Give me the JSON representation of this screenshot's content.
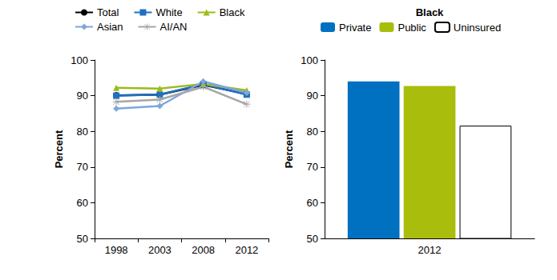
{
  "chart_data": [
    {
      "type": "line",
      "categories": [
        "1998",
        "2003",
        "2008",
        "2012"
      ],
      "y_label": "Percent",
      "ylim": [
        50,
        100
      ],
      "yticks": [
        50,
        60,
        70,
        80,
        90,
        100
      ],
      "grid": false,
      "legend": "top",
      "series": [
        {
          "name": "Total",
          "color": "#000000",
          "marker": "circle",
          "values": [
            90.1,
            90.3,
            93.0,
            90.5
          ]
        },
        {
          "name": "White",
          "color": "#1f6fc5",
          "marker": "square",
          "values": [
            90.0,
            90.3,
            93.2,
            90.3
          ]
        },
        {
          "name": "Black",
          "color": "#9bbb1a",
          "marker": "triangle",
          "values": [
            92.2,
            92.0,
            93.3,
            91.5
          ]
        },
        {
          "name": "Asian",
          "color": "#7ea7dc",
          "marker": "diamond",
          "values": [
            86.4,
            87.1,
            94.0,
            90.8
          ]
        },
        {
          "name": "AI/AN",
          "color": "#a6a6a6",
          "marker": "star",
          "values": [
            88.3,
            88.9,
            92.5,
            87.6
          ]
        }
      ]
    },
    {
      "type": "bar",
      "title": "Black",
      "categories": [
        "2012"
      ],
      "y_label": "Percent",
      "ylim": [
        50,
        100
      ],
      "yticks": [
        50,
        60,
        70,
        80,
        90,
        100
      ],
      "grid": false,
      "legend": "top",
      "series": [
        {
          "name": "Private",
          "color": "#0070c0",
          "values": [
            94.0
          ]
        },
        {
          "name": "Public",
          "color": "#a9bd0c",
          "values": [
            92.7
          ]
        },
        {
          "name": "Uninsured",
          "color": "#ffffff",
          "values": [
            81.6
          ]
        }
      ]
    }
  ]
}
